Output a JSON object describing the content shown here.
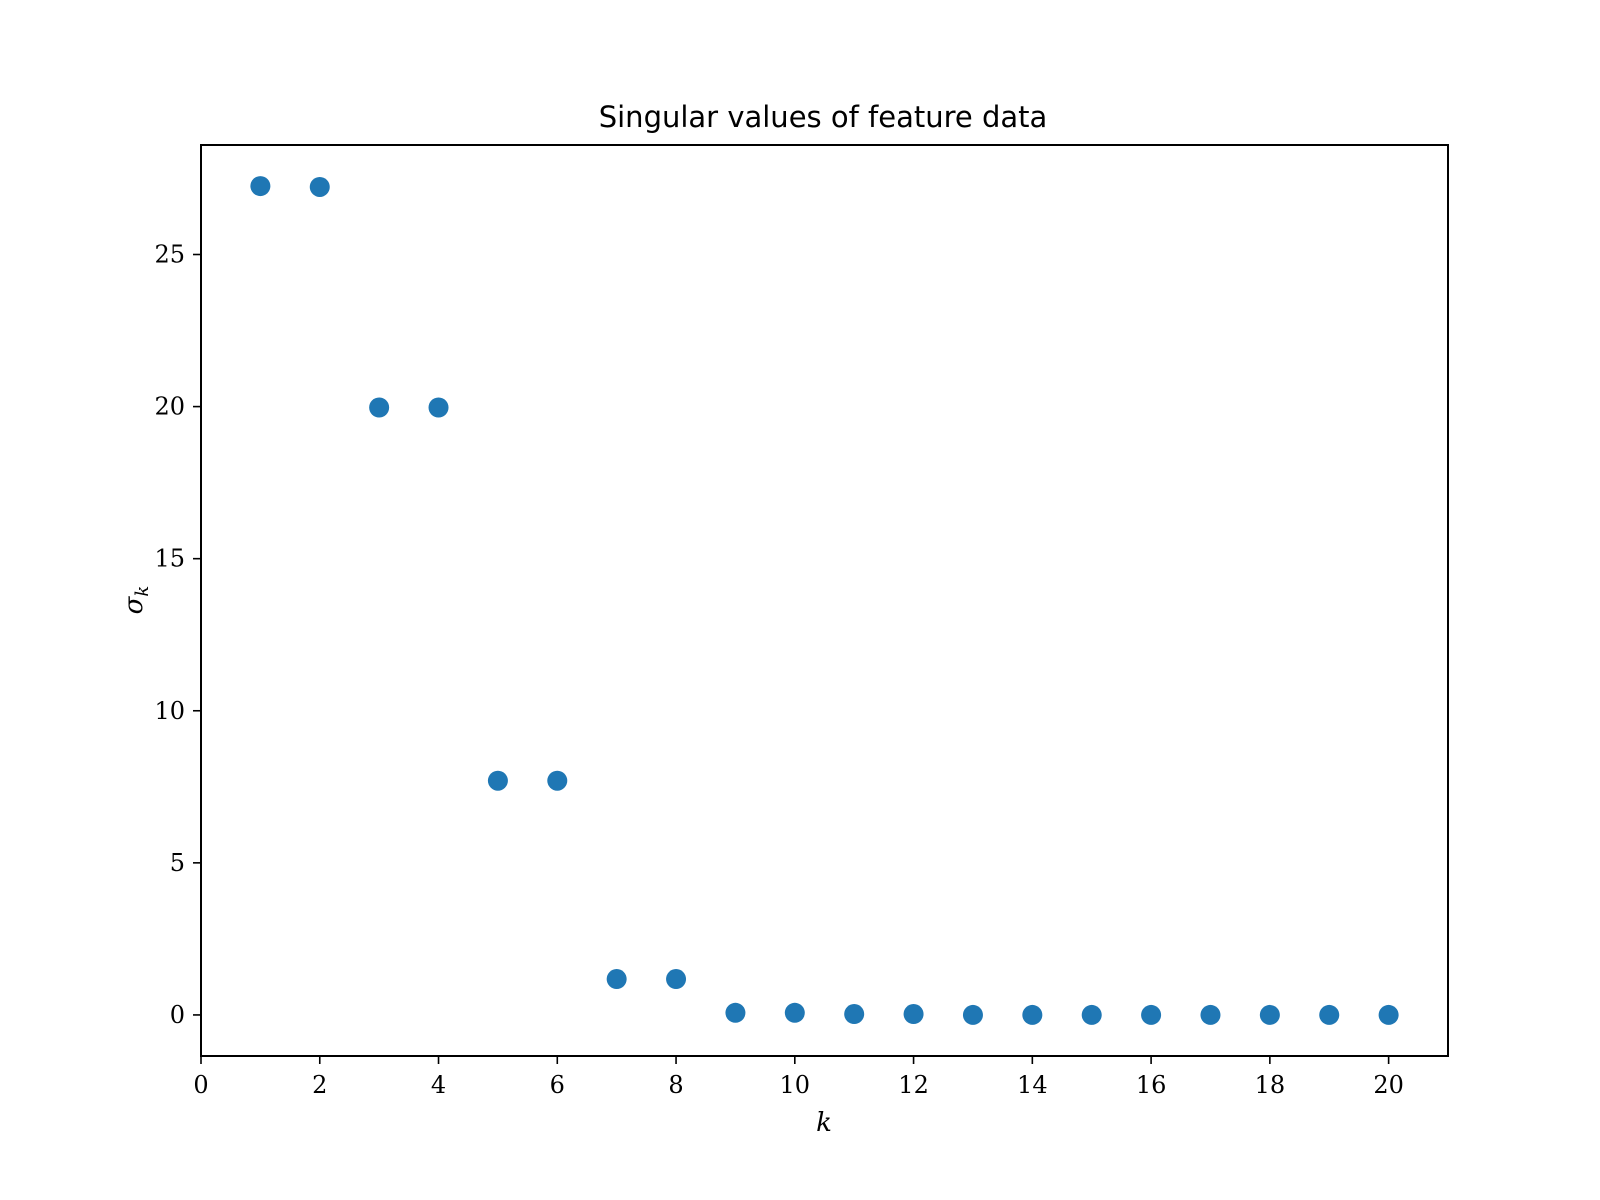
{
  "chart_data": {
    "type": "scatter",
    "title": "Singular values of feature data",
    "xlabel": "k",
    "ylabel": "σ",
    "ylabel_subscript": "k",
    "xlim": [
      0,
      21
    ],
    "ylim": [
      -1.35,
      28.6
    ],
    "xticks": [
      0,
      2,
      4,
      6,
      8,
      10,
      12,
      14,
      16,
      18,
      20
    ],
    "yticks": [
      0,
      5,
      10,
      15,
      20,
      25
    ],
    "grid": false,
    "legend": "none",
    "series": [
      {
        "color": "#1f77b4",
        "x": [
          1,
          2,
          3,
          4,
          5,
          6,
          7,
          8,
          9,
          10,
          11,
          12,
          13,
          14,
          15,
          16,
          17,
          18,
          19,
          20
        ],
        "y": [
          27.25,
          27.22,
          19.97,
          19.97,
          7.7,
          7.7,
          1.18,
          1.18,
          0.07,
          0.07,
          0.03,
          0.03,
          0.0,
          0.0,
          0.0,
          0.0,
          0.0,
          0.0,
          0.0,
          0.0
        ]
      }
    ]
  }
}
